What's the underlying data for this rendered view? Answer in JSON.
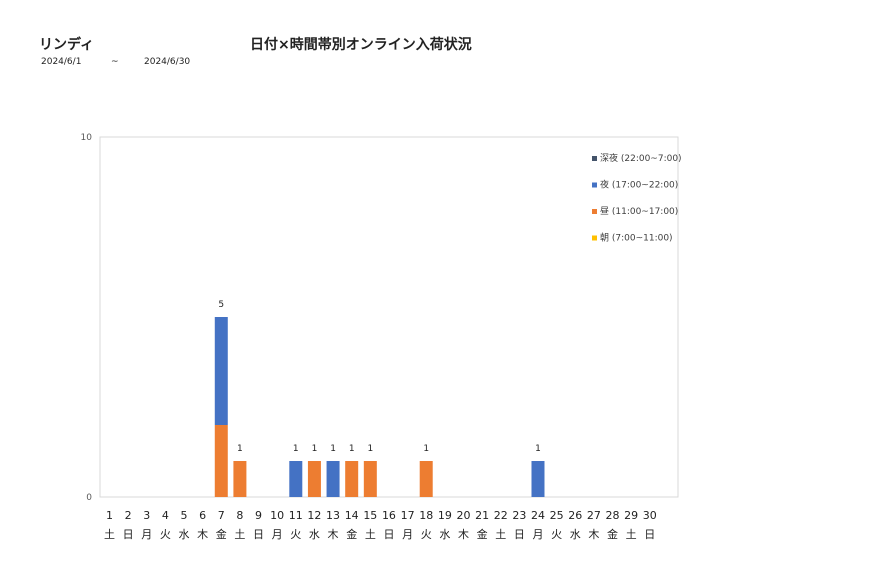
{
  "header": {
    "brand": "リンディ",
    "title": "日付×時間帯別オンライン入荷状況",
    "date_from": "2024/6/1",
    "date_sep": "~",
    "date_to": "2024/6/30"
  },
  "chart_data": {
    "type": "bar",
    "stacked": true,
    "ylim": [
      0,
      10
    ],
    "yticks": [
      0,
      10
    ],
    "grid": false,
    "legend_position": "right",
    "categories": [
      "1",
      "2",
      "3",
      "4",
      "5",
      "6",
      "7",
      "8",
      "9",
      "10",
      "11",
      "12",
      "13",
      "14",
      "15",
      "16",
      "17",
      "18",
      "19",
      "20",
      "21",
      "22",
      "23",
      "24",
      "25",
      "26",
      "27",
      "28",
      "29",
      "30"
    ],
    "weekdays": [
      "土",
      "日",
      "月",
      "火",
      "水",
      "木",
      "金",
      "土",
      "日",
      "月",
      "火",
      "水",
      "木",
      "金",
      "土",
      "日",
      "月",
      "火",
      "水",
      "木",
      "金",
      "土",
      "日",
      "月",
      "火",
      "水",
      "木",
      "金",
      "土",
      "日"
    ],
    "series": [
      {
        "name": "朝 (7:00~11:00)",
        "color": "#ffc000",
        "values": [
          0,
          0,
          0,
          0,
          0,
          0,
          0,
          0,
          0,
          0,
          0,
          0,
          0,
          0,
          0,
          0,
          0,
          0,
          0,
          0,
          0,
          0,
          0,
          0,
          0,
          0,
          0,
          0,
          0,
          0
        ]
      },
      {
        "name": "昼 (11:00~17:00)",
        "color": "#ed7d31",
        "values": [
          0,
          0,
          0,
          0,
          0,
          0,
          2,
          1,
          0,
          0,
          0,
          1,
          0,
          1,
          1,
          0,
          0,
          1,
          0,
          0,
          0,
          0,
          0,
          0,
          0,
          0,
          0,
          0,
          0,
          0
        ]
      },
      {
        "name": "夜 (17:00~22:00)",
        "color": "#4472c4",
        "values": [
          0,
          0,
          0,
          0,
          0,
          0,
          3,
          0,
          0,
          0,
          1,
          0,
          1,
          0,
          0,
          0,
          0,
          0,
          0,
          0,
          0,
          0,
          0,
          1,
          0,
          0,
          0,
          0,
          0,
          0
        ]
      },
      {
        "name": "深夜 (22:00~7:00)",
        "color": "#44546a",
        "values": [
          0,
          0,
          0,
          0,
          0,
          0,
          0,
          0,
          0,
          0,
          0,
          0,
          0,
          0,
          0,
          0,
          0,
          0,
          0,
          0,
          0,
          0,
          0,
          0,
          0,
          0,
          0,
          0,
          0,
          0
        ]
      }
    ],
    "totals": [
      0,
      0,
      0,
      0,
      0,
      0,
      5,
      1,
      0,
      0,
      1,
      1,
      1,
      1,
      1,
      0,
      0,
      1,
      0,
      0,
      0,
      0,
      0,
      1,
      0,
      0,
      0,
      0,
      0,
      0
    ],
    "legend_order": [
      "深夜 (22:00~7:00)",
      "夜 (17:00~22:00)",
      "昼 (11:00~17:00)",
      "朝 (7:00~11:00)"
    ]
  }
}
